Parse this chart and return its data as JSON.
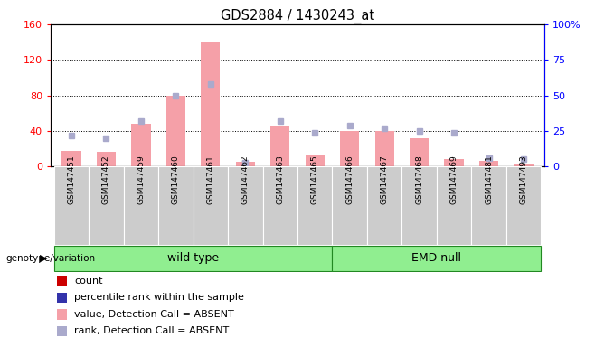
{
  "title": "GDS2884 / 1430243_at",
  "samples": [
    "GSM147451",
    "GSM147452",
    "GSM147459",
    "GSM147460",
    "GSM147461",
    "GSM147462",
    "GSM147463",
    "GSM147465",
    "GSM147466",
    "GSM147467",
    "GSM147468",
    "GSM147469",
    "GSM147481",
    "GSM147493"
  ],
  "count_values": [
    18,
    17,
    48,
    80,
    140,
    5,
    46,
    13,
    40,
    40,
    32,
    8,
    6,
    3
  ],
  "rank_values": [
    22,
    20,
    32,
    50,
    58,
    3,
    32,
    24,
    29,
    27,
    25,
    24,
    6,
    5
  ],
  "groups": {
    "wild type": [
      0,
      1,
      2,
      3,
      4,
      5,
      6,
      7
    ],
    "EMD null": [
      8,
      9,
      10,
      11,
      12,
      13
    ]
  },
  "ylim_left": [
    0,
    160
  ],
  "ylim_right": [
    0,
    100
  ],
  "yticks_left": [
    0,
    40,
    80,
    120,
    160
  ],
  "yticks_right": [
    0,
    25,
    50,
    75,
    100
  ],
  "ytick_labels_right": [
    "0",
    "25",
    "50",
    "75",
    "100%"
  ],
  "bar_color_absent": "#f5a0a8",
  "dot_color_absent": "#aaaacc",
  "group_color": "#90ee90",
  "group_border_color": "#228822",
  "bg_color": "#cccccc",
  "plot_bg": "#ffffff",
  "legend_items": [
    {
      "label": "count",
      "color": "#cc0000"
    },
    {
      "label": "percentile rank within the sample",
      "color": "#3333aa"
    },
    {
      "label": "value, Detection Call = ABSENT",
      "color": "#f5a0a8"
    },
    {
      "label": "rank, Detection Call = ABSENT",
      "color": "#aaaacc"
    }
  ]
}
